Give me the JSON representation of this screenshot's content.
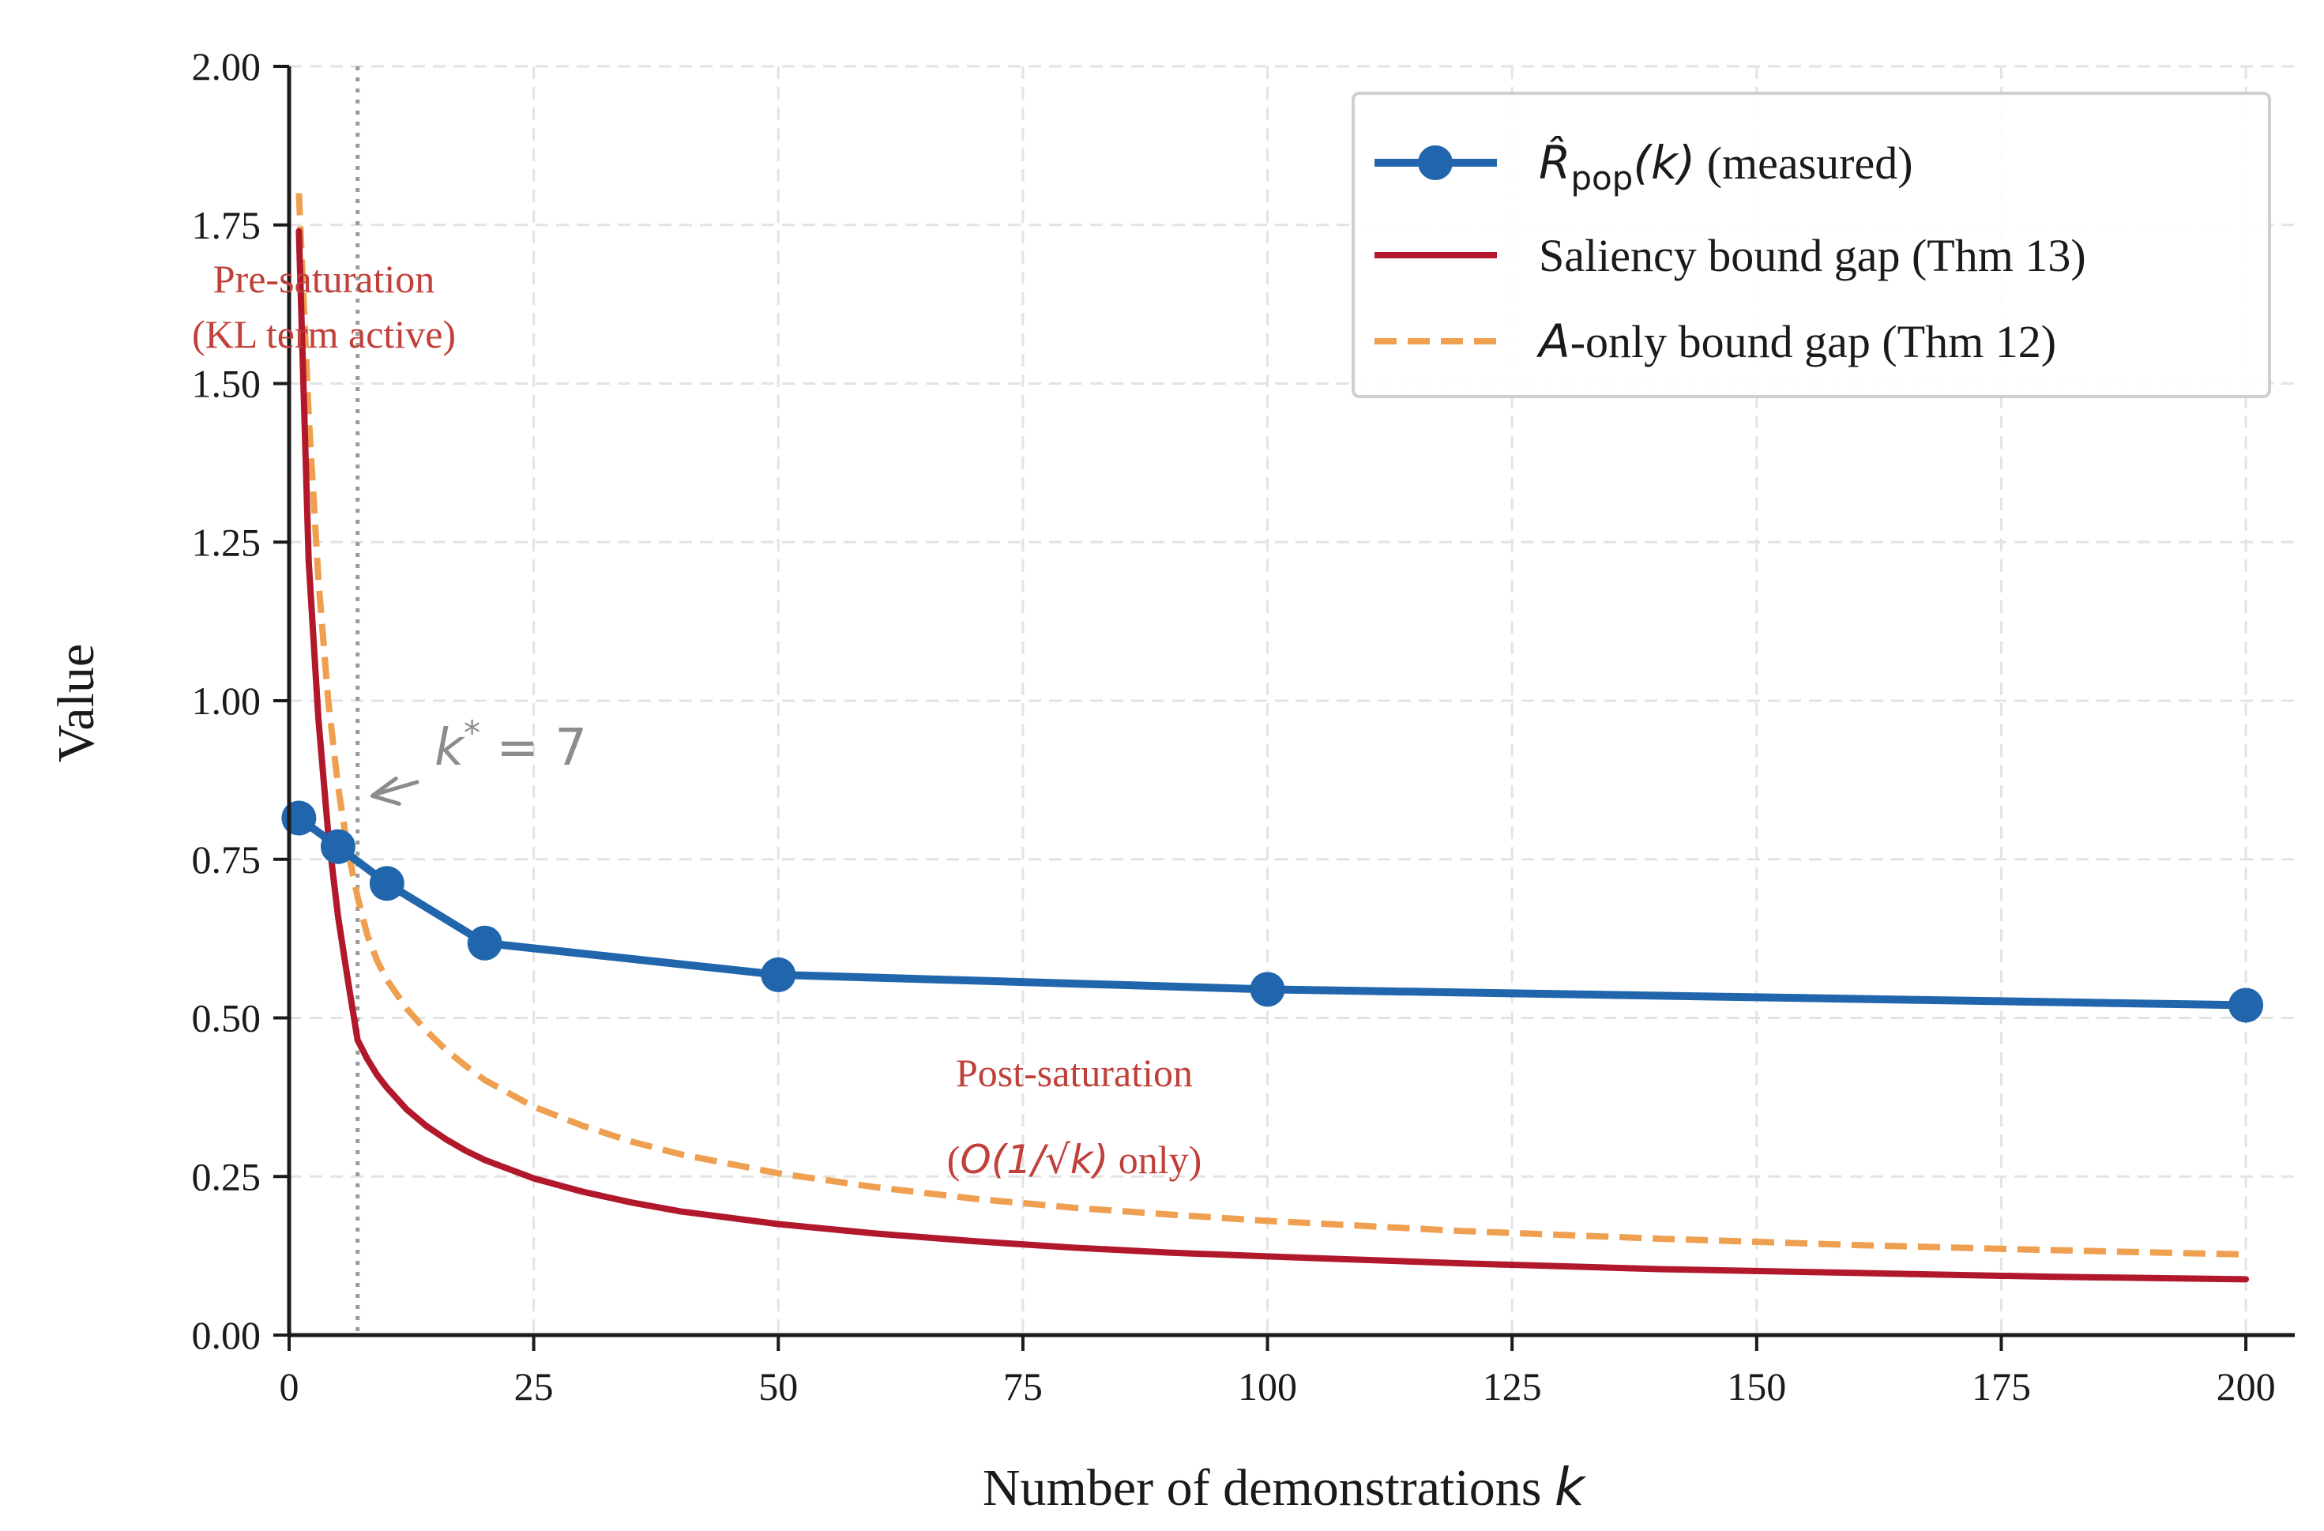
{
  "chart_data": {
    "type": "line",
    "xlabel_prefix": "Number of demonstrations ",
    "xlabel_var": "k",
    "ylabel": "Value",
    "xlim": [
      0,
      205
    ],
    "ylim": [
      0,
      2.0
    ],
    "xticks": [
      0,
      25,
      50,
      75,
      100,
      125,
      150,
      175,
      200
    ],
    "yticks": [
      0.0,
      0.25,
      0.5,
      0.75,
      1.0,
      1.25,
      1.5,
      1.75,
      2.0
    ],
    "xtick_labels": [
      "0",
      "25",
      "50",
      "75",
      "100",
      "125",
      "150",
      "175",
      "200"
    ],
    "ytick_labels": [
      "0.00",
      "0.25",
      "0.50",
      "0.75",
      "1.00",
      "1.25",
      "1.50",
      "1.75",
      "2.00"
    ],
    "grid": true,
    "legend_position": "top-right",
    "series": [
      {
        "name": "measured",
        "legend_math": "R̂",
        "legend_sub": "pop",
        "legend_arg": "(k)",
        "legend_rest": " (measured)",
        "color": "#2166ac",
        "style": "solid-markers",
        "x": [
          1,
          5,
          10,
          20,
          50,
          100,
          200
        ],
        "y": [
          0.815,
          0.77,
          0.712,
          0.618,
          0.568,
          0.545,
          0.52
        ]
      },
      {
        "name": "Saliency bound gap (Thm 13)",
        "legend_text": "Saliency bound gap (Thm 13)",
        "color": "#b2182b",
        "style": "solid",
        "x": [
          1,
          2,
          3,
          4,
          5,
          6,
          7,
          8,
          9,
          10,
          12,
          14,
          16,
          18,
          20,
          25,
          30,
          35,
          40,
          50,
          60,
          70,
          80,
          90,
          100,
          120,
          140,
          160,
          180,
          200
        ],
        "y": [
          1.74,
          1.22,
          0.97,
          0.79,
          0.66,
          0.56,
          0.465,
          0.435,
          0.41,
          0.39,
          0.356,
          0.33,
          0.309,
          0.291,
          0.276,
          0.247,
          0.226,
          0.209,
          0.195,
          0.175,
          0.16,
          0.148,
          0.138,
          0.13,
          0.124,
          0.113,
          0.104,
          0.098,
          0.092,
          0.088
        ]
      },
      {
        "name": "A-only bound gap (Thm 12)",
        "legend_math": "A",
        "legend_rest": "-only bound gap (Thm 12)",
        "color": "#ef9f50",
        "style": "dashed",
        "x": [
          1,
          2,
          3,
          4,
          5,
          6,
          7,
          8,
          9,
          10,
          12,
          14,
          16,
          18,
          20,
          25,
          30,
          35,
          40,
          50,
          60,
          70,
          80,
          90,
          100,
          120,
          140,
          160,
          180,
          200
        ],
        "y": [
          1.8,
          1.45,
          1.19,
          1.0,
          0.865,
          0.765,
          0.69,
          0.63,
          0.59,
          0.56,
          0.515,
          0.48,
          0.45,
          0.425,
          0.402,
          0.36,
          0.33,
          0.305,
          0.285,
          0.255,
          0.233,
          0.215,
          0.201,
          0.19,
          0.18,
          0.164,
          0.152,
          0.142,
          0.134,
          0.127
        ]
      }
    ],
    "vline": {
      "x": 7,
      "color": "#999999",
      "style": "dotted"
    },
    "annotations": [
      {
        "id": "pre-saturation",
        "lines": [
          "Pre-saturation",
          "(KL term active)"
        ],
        "x": 8,
        "y": 1.65,
        "color": "#c0403a"
      },
      {
        "id": "post-saturation",
        "line1": "Post-saturation",
        "line2_open": "(",
        "line2_math": "O(1/√k)",
        "line2_rest": " only)",
        "x": 80,
        "y": 0.35,
        "color": "#c0403a"
      },
      {
        "id": "kstar",
        "text": "k* = 7",
        "text_math_k": "k",
        "text_sup": "*",
        "text_rest": " = 7",
        "x": 15,
        "y": 0.9,
        "arrow_to_x": 8.5,
        "arrow_to_y": 0.85,
        "color": "#8c8c8c"
      }
    ]
  }
}
